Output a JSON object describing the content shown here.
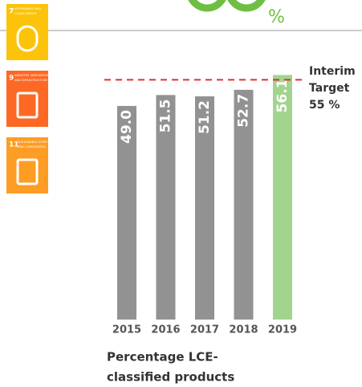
{
  "chart_data": {
    "type": "bar",
    "categories": [
      "2015",
      "2016",
      "2017",
      "2018",
      "2019"
    ],
    "values": [
      49.0,
      51.5,
      51.2,
      52.7,
      56.1
    ],
    "value_labels": [
      "49.0",
      "51.5",
      "51.2",
      "52.7",
      "56.1"
    ],
    "colors": [
      "#929292",
      "#929292",
      "#929292",
      "#929292",
      "#a3d48e"
    ],
    "target": {
      "value": 55,
      "lines": [
        "Interim",
        "Target",
        "55 %"
      ],
      "color": "#e0312f"
    },
    "footer": [
      "Percentage LCE-",
      "classified products"
    ],
    "headline_unit": "%",
    "icons": [
      {
        "number": "7",
        "lines": [
          "AFFORDABLE AND",
          "CLEAN ENERGY"
        ],
        "color": "#fcc30b"
      },
      {
        "number": "9",
        "lines": [
          "INDUSTRY, INNOVATION",
          "AND INFRASTRUCTURE"
        ],
        "color": "#fd6925"
      },
      {
        "number": "11",
        "lines": [
          "SUSTAINABLE CITIES",
          "AND COMMUNITIES"
        ],
        "color": "#fd9d24"
      }
    ]
  }
}
